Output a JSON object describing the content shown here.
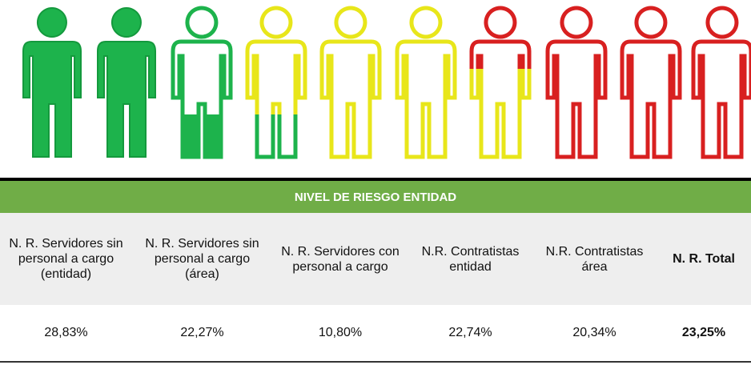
{
  "table": {
    "title": "NIVEL DE RIESGO ENTIDAD",
    "columns": [
      "N. R. Servidores sin personal a cargo (entidad)",
      "N. R. Servidores sin personal a cargo (área)",
      "N. R. Servidores con personal a cargo",
      "N.R. Contratistas entidad",
      "N.R. Contratistas área",
      "N. R. Total"
    ],
    "rows": [
      [
        "28,83%",
        "22,27%",
        "10,80%",
        "22,74%",
        "20,34%",
        "23,25%"
      ]
    ]
  }
}
